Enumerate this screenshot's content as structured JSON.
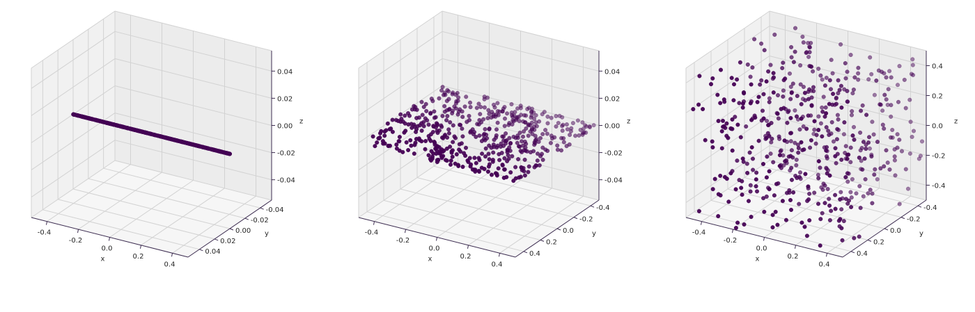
{
  "chart_data": [
    {
      "type": "scatter",
      "projection": "3d",
      "title": "",
      "xlabel": "x",
      "ylabel": "y",
      "zlabel": "z",
      "xlim": [
        -0.5,
        0.5
      ],
      "ylim": [
        -0.055,
        0.055
      ],
      "zlim": [
        -0.055,
        0.055
      ],
      "xticks": [
        "-0.4",
        "-0.2",
        "0.0",
        "0.2",
        "0.4"
      ],
      "yticks": [
        "-0.04",
        "-0.02",
        "0.00",
        "0.02",
        "0.04"
      ],
      "zticks": [
        "-0.04",
        "-0.02",
        "0.00",
        "0.02",
        "0.04"
      ],
      "grid": true,
      "color": "#440154",
      "distribution": "points on a line: x uniform in [-0.5, 0.5], y = 0, z = 0",
      "point_count": 500
    },
    {
      "type": "scatter",
      "projection": "3d",
      "title": "",
      "xlabel": "x",
      "ylabel": "y",
      "zlabel": "z",
      "xlim": [
        -0.5,
        0.5
      ],
      "ylim": [
        -0.5,
        0.5
      ],
      "zlim": [
        -0.055,
        0.055
      ],
      "xticks": [
        "-0.4",
        "-0.2",
        "0.0",
        "0.2",
        "0.4"
      ],
      "yticks": [
        "-0.4",
        "-0.2",
        "0.0",
        "0.2",
        "0.4"
      ],
      "zticks": [
        "-0.04",
        "-0.02",
        "0.00",
        "0.02",
        "0.04"
      ],
      "grid": true,
      "color": "#440154",
      "distribution": "points in a plane: x, y uniform in [-0.5, 0.5], z = 0",
      "point_count": 500
    },
    {
      "type": "scatter",
      "projection": "3d",
      "title": "",
      "xlabel": "x",
      "ylabel": "y",
      "zlabel": "z",
      "xlim": [
        -0.5,
        0.5
      ],
      "ylim": [
        -0.5,
        0.5
      ],
      "zlim": [
        -0.5,
        0.5
      ],
      "xticks": [
        "-0.4",
        "-0.2",
        "0.0",
        "0.2",
        "0.4"
      ],
      "yticks": [
        "-0.4",
        "-0.2",
        "0.0",
        "0.2",
        "0.4"
      ],
      "zticks": [
        "-0.4",
        "-0.2",
        "0.0",
        "0.2",
        "0.4"
      ],
      "grid": true,
      "color": "#440154",
      "distribution": "points in a cube: x, y, z uniform in [-0.5, 0.5]",
      "point_count": 500
    }
  ]
}
